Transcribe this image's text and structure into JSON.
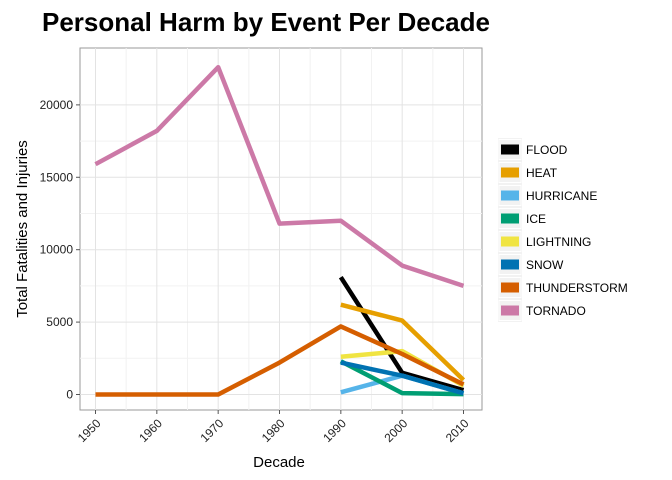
{
  "chart_data": {
    "type": "line",
    "title": "Personal Harm by Event Per Decade",
    "xlabel": "Decade",
    "ylabel": "Total Fatalities and Injuries",
    "x": [
      1950,
      1960,
      1970,
      1980,
      1990,
      2000,
      2010
    ],
    "xlim": [
      1950,
      2010
    ],
    "ylim": [
      0,
      22650
    ],
    "yticks": [
      0,
      5000,
      10000,
      15000,
      20000
    ],
    "grid": true,
    "legend_position": "right",
    "series": [
      {
        "name": "FLOOD",
        "color": "#000000",
        "points": [
          [
            1990,
            8100
          ],
          [
            2000,
            1500
          ],
          [
            2010,
            300
          ]
        ]
      },
      {
        "name": "HEAT",
        "color": "#E69F00",
        "points": [
          [
            1990,
            6200
          ],
          [
            2000,
            5100
          ],
          [
            2010,
            1000
          ]
        ]
      },
      {
        "name": "HURRICANE",
        "color": "#56B4E9",
        "points": [
          [
            1990,
            150
          ],
          [
            2000,
            1300
          ],
          [
            2010,
            80
          ]
        ]
      },
      {
        "name": "ICE",
        "color": "#009E73",
        "points": [
          [
            1990,
            2300
          ],
          [
            2000,
            100
          ],
          [
            2010,
            30
          ]
        ]
      },
      {
        "name": "LIGHTNING",
        "color": "#F0E442",
        "points": [
          [
            1990,
            2600
          ],
          [
            2000,
            3000
          ],
          [
            2010,
            600
          ]
        ]
      },
      {
        "name": "SNOW",
        "color": "#0072B2",
        "points": [
          [
            1990,
            2200
          ],
          [
            2000,
            1300
          ],
          [
            2010,
            80
          ]
        ]
      },
      {
        "name": "THUNDERSTORM",
        "color": "#D55E00",
        "points": [
          [
            1950,
            0
          ],
          [
            1960,
            0
          ],
          [
            1970,
            0
          ],
          [
            1980,
            2200
          ],
          [
            1990,
            4700
          ],
          [
            2000,
            2800
          ],
          [
            2010,
            700
          ]
        ]
      },
      {
        "name": "TORNADO",
        "color": "#CC79A7",
        "points": [
          [
            1950,
            15900
          ],
          [
            1960,
            18200
          ],
          [
            1970,
            22600
          ],
          [
            1980,
            11800
          ],
          [
            1990,
            12000
          ],
          [
            2000,
            8900
          ],
          [
            2010,
            7500
          ]
        ]
      }
    ]
  }
}
